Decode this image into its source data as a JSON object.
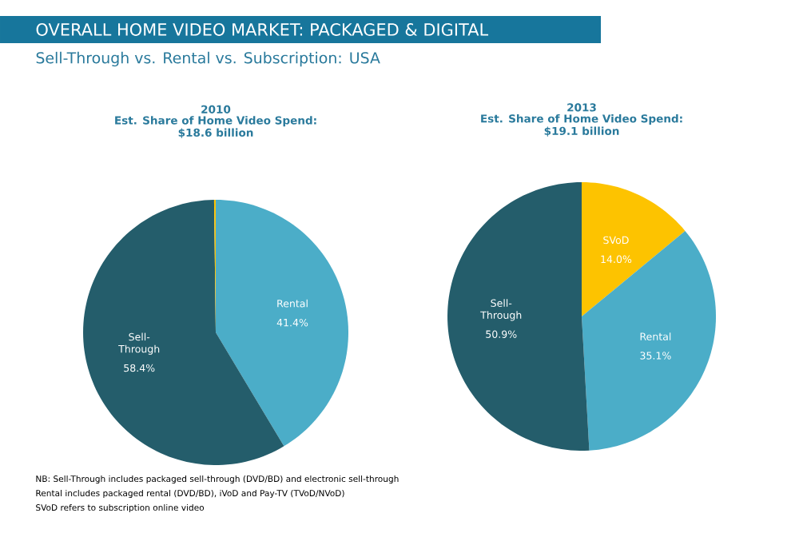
{
  "chart_data": [
    {
      "type": "other",
      "title": "OVERALL HOME VIDEO MARKET: PACKAGED & DIGITAL",
      "subtitle": "Sell-Through vs. Rental vs.  Subscription: USA",
      "annotations": [
        "NB: Sell-Through includes packaged sell-through (DVD/BD) and electronic sell-through",
        "Rental includes packaged rental (DVD/BD), iVoD and Pay-TV (TVoD/NVoD)",
        "SVoD refers to subscription online video"
      ]
    },
    {
      "type": "pie",
      "title": "2010",
      "subtitle": "Est. Share of Home Video Spend:",
      "annotations": [
        "$18.6  billion"
      ],
      "categories": [
        "Rental",
        "Sell-Through",
        null
      ],
      "values": [
        41.4,
        58.4,
        0.2
      ],
      "colors": [
        "#4badc8",
        "#245d6b",
        "#fdc300"
      ],
      "value_labels": [
        "41.4%",
        "58.4%",
        null
      ]
    },
    {
      "type": "pie",
      "title": "2013",
      "subtitle": "Est. Share of Home Video Spend:",
      "annotations": [
        "$19.1  billion"
      ],
      "categories": [
        "SVoD",
        "Rental",
        "Sell-Through"
      ],
      "values": [
        14.0,
        35.1,
        50.9
      ],
      "colors": [
        "#fdc300",
        "#4badc8",
        "#245d6b"
      ],
      "value_labels": [
        "14.0%",
        "35.1%",
        "50.9%"
      ]
    }
  ]
}
